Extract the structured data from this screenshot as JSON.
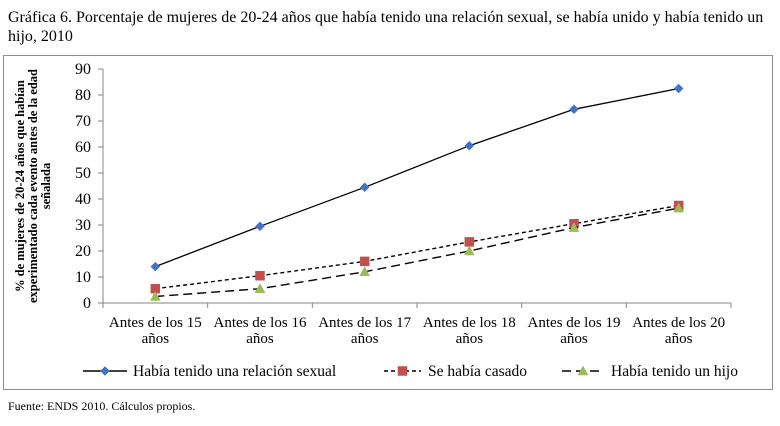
{
  "title": "Gráfica 6. Porcentaje de mujeres de 20-24 años que había tenido una relación sexual, se había unido y había tenido un hijo, 2010",
  "source": "Fuente: ENDS 2010. Cálculos propios.",
  "chart_data": {
    "type": "line",
    "title": "Gráfica 6. Porcentaje de mujeres de 20-24 años que había tenido una relación sexual, se había unido y había tenido un hijo, 2010",
    "categories": [
      [
        "Antes de los 15",
        "años"
      ],
      [
        "Antes de los 16",
        "años"
      ],
      [
        "Antes de los 17",
        "años"
      ],
      [
        "Antes de los 18",
        "años"
      ],
      [
        "Antes de los 19",
        "años"
      ],
      [
        "Antes de los 20",
        "años"
      ]
    ],
    "ylabel": [
      "% de mujeres de 20-24 años que habían",
      "experimentado cada evento antes de la edad",
      "señalada"
    ],
    "xlabel": "",
    "ylim": [
      0,
      90
    ],
    "yticks": [
      0,
      10,
      20,
      30,
      40,
      50,
      60,
      70,
      80,
      90
    ],
    "grid": false,
    "legend_position": "bottom",
    "series": [
      {
        "name": "Había tenido una relación sexual",
        "values": [
          14,
          29.5,
          44.5,
          60.5,
          74.5,
          82.5
        ],
        "color": "#4472c4",
        "marker": "diamond",
        "line_style": "solid"
      },
      {
        "name": "Se había casado",
        "values": [
          5.5,
          10.5,
          16,
          23.5,
          30.5,
          37.5
        ],
        "color": "#c0504d",
        "marker": "square",
        "line_style": "short-dash"
      },
      {
        "name": "Había tenido un hijo",
        "values": [
          2.5,
          5.5,
          12,
          20,
          29,
          36.5
        ],
        "color": "#9bbb59",
        "marker": "triangle",
        "line_style": "long-dash"
      }
    ]
  }
}
